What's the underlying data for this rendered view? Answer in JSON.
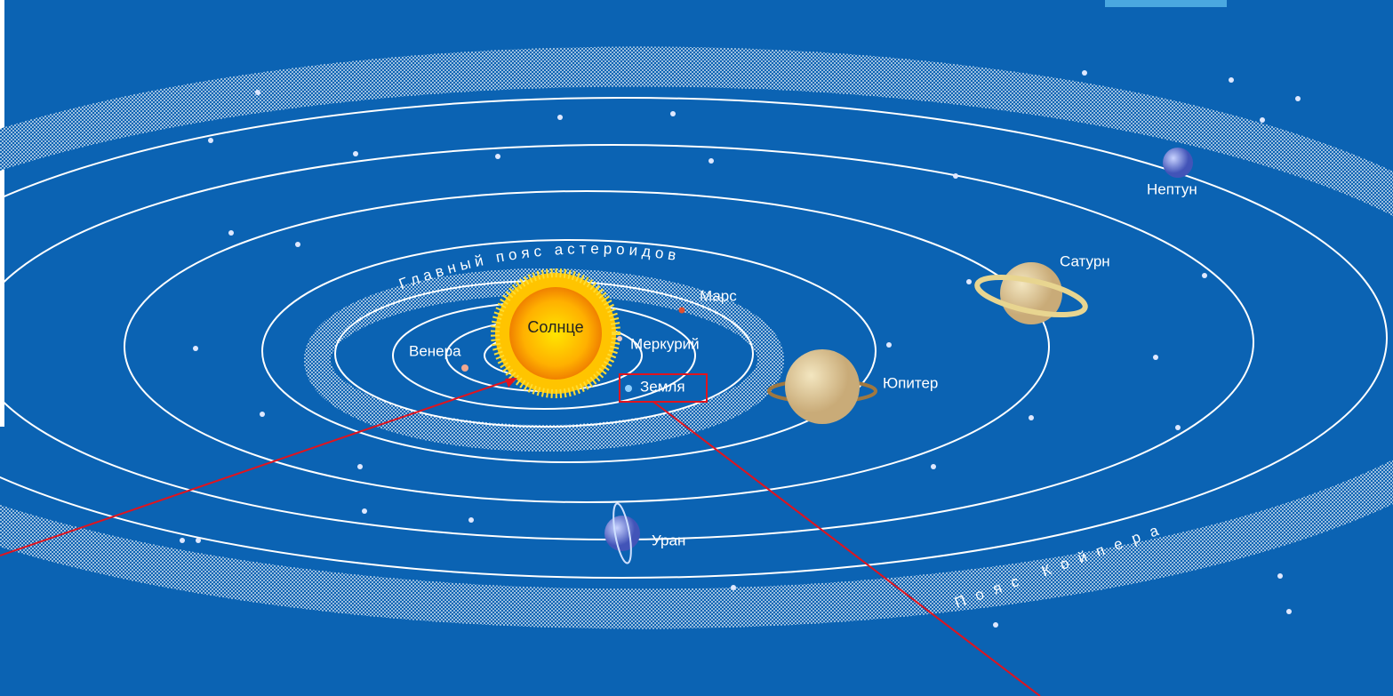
{
  "labels": {
    "sun": "Солнце",
    "mercury": "Меркурий",
    "venus": "Венера",
    "earth": "Земля",
    "mars": "Марс",
    "jupiter": "Юпитер",
    "saturn": "Сатурн",
    "uranus": "Уран",
    "neptune": "Нептун",
    "asteroid_belt": "Главный пояс астероидов",
    "kuiper_belt": "Пояс Койпера"
  }
}
